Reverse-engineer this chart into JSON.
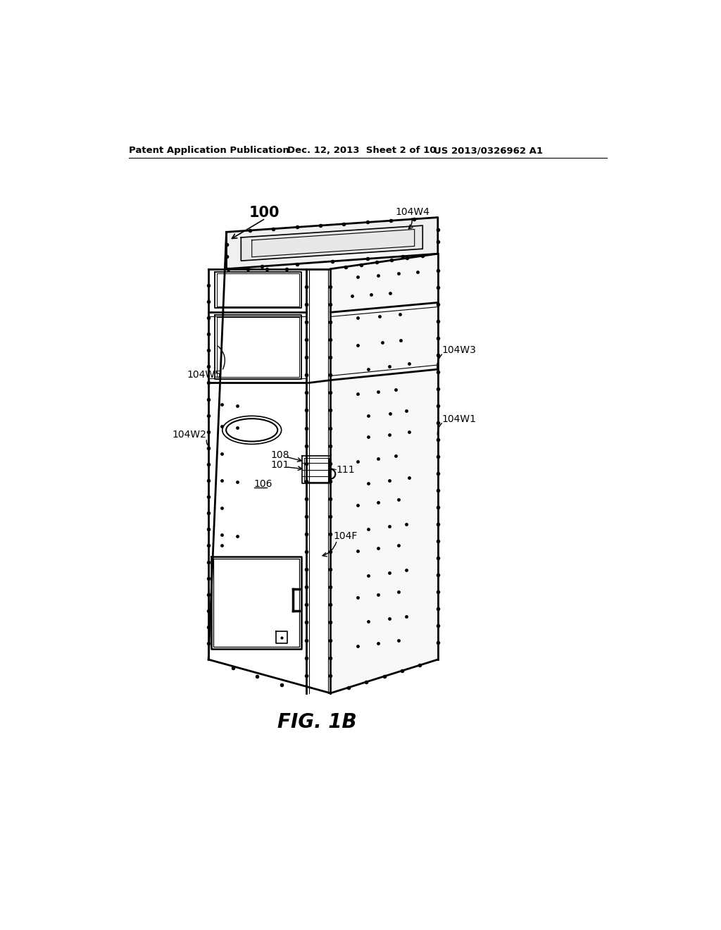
{
  "background_color": "#ffffff",
  "header_left": "Patent Application Publication",
  "header_center": "Dec. 12, 2013  Sheet 2 of 10",
  "header_right": "US 2013/0326962 A1",
  "fig_label": "FIG. 1B"
}
